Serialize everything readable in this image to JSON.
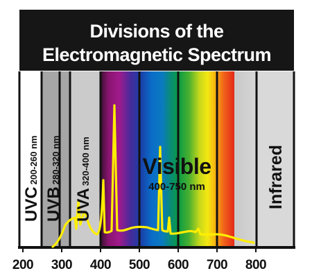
{
  "title": {
    "line1": "Divisions of the",
    "line2": "Electromagnetic Spectrum"
  },
  "bands": {
    "uvc": {
      "name": "UVC",
      "range": "200-260 nm",
      "color": "#ffffff"
    },
    "uvb": {
      "name": "UVB",
      "range": "280-320 nm",
      "color": "#a6a6a6"
    },
    "uva": {
      "name": "UVA",
      "range": "320-400 nm",
      "color": "#cbcbcb"
    },
    "visible": {
      "name": "Visible",
      "range": "400-750 nm"
    },
    "infrared": {
      "name": "Infrared",
      "color": "#d9d9d9"
    }
  },
  "axis": {
    "ticks": [
      "200",
      "300",
      "400",
      "500",
      "600",
      "700",
      "800"
    ],
    "domain_nm": [
      200,
      800
    ]
  },
  "colors": {
    "title_bg": "#161616",
    "emission_line": "#ffee00",
    "divider": "#111111"
  }
}
